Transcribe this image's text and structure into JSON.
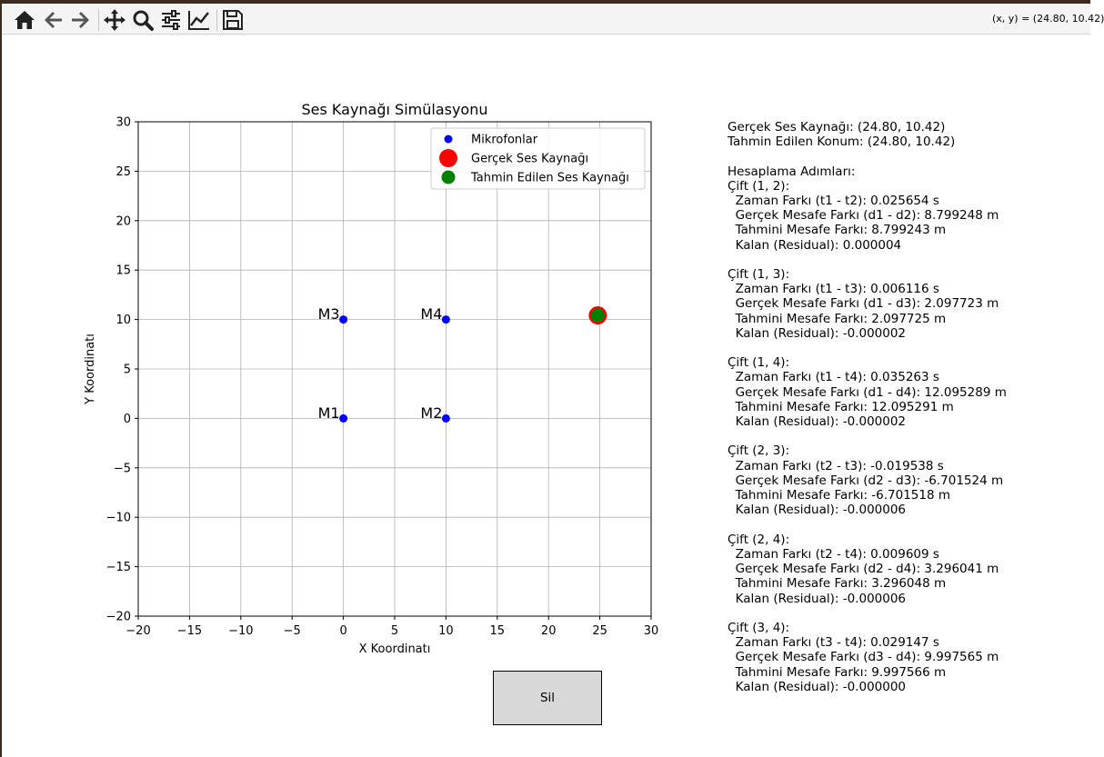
{
  "toolbar": {
    "buttons": [
      {
        "name": "home-icon"
      },
      {
        "name": "back-arrow-icon"
      },
      {
        "name": "forward-arrow-icon"
      },
      {
        "name": "pan-icon"
      },
      {
        "name": "zoom-icon"
      },
      {
        "name": "subplot-config-icon"
      },
      {
        "name": "axis-edit-icon"
      },
      {
        "name": "save-icon"
      }
    ],
    "coords": "(x, y) = (24.80, 10.42)"
  },
  "chart_data": {
    "type": "scatter",
    "title": "Ses Kaynağı Simülasyonu",
    "xlabel": "X Koordinatı",
    "ylabel": "Y Koordinatı",
    "xlim": [
      -20,
      30
    ],
    "ylim": [
      -20,
      30
    ],
    "xticks": [
      -20,
      -15,
      -10,
      -5,
      0,
      5,
      10,
      15,
      20,
      25,
      30
    ],
    "yticks": [
      -20,
      -15,
      -10,
      -5,
      0,
      5,
      10,
      15,
      20,
      25,
      30
    ],
    "grid": true,
    "legend_position": "upper-right",
    "series": [
      {
        "name": "Mikrofonlar",
        "color": "#0000ff",
        "marker": "small-dot",
        "points": [
          [
            0,
            0
          ],
          [
            10,
            0
          ],
          [
            0,
            10
          ],
          [
            10,
            10
          ]
        ]
      },
      {
        "name": "Gerçek Ses Kaynağı",
        "color": "#ff0000",
        "marker": "large-dot",
        "points": [
          [
            24.8,
            10.42
          ]
        ]
      },
      {
        "name": "Tahmin Edilen Ses Kaynağı",
        "color": "#008000",
        "marker": "medium-dot",
        "points": [
          [
            24.8,
            10.42
          ]
        ]
      }
    ],
    "annotations": [
      {
        "text": "M1",
        "x": 0,
        "y": 0
      },
      {
        "text": "M2",
        "x": 10,
        "y": 0
      },
      {
        "text": "M3",
        "x": 0,
        "y": 10
      },
      {
        "text": "M4",
        "x": 10,
        "y": 10
      }
    ]
  },
  "info_text": "Gerçek Ses Kaynağı: (24.80, 10.42)\nTahmin Edilen Konum: (24.80, 10.42)\n\nHesaplama Adımları:\nÇift (1, 2):\n  Zaman Farkı (t1 - t2): 0.025654 s\n  Gerçek Mesafe Farkı (d1 - d2): 8.799248 m\n  Tahmini Mesafe Farkı: 8.799243 m\n  Kalan (Residual): 0.000004\n\nÇift (1, 3):\n  Zaman Farkı (t1 - t3): 0.006116 s\n  Gerçek Mesafe Farkı (d1 - d3): 2.097723 m\n  Tahmini Mesafe Farkı: 2.097725 m\n  Kalan (Residual): -0.000002\n\nÇift (1, 4):\n  Zaman Farkı (t1 - t4): 0.035263 s\n  Gerçek Mesafe Farkı (d1 - d4): 12.095289 m\n  Tahmini Mesafe Farkı: 12.095291 m\n  Kalan (Residual): -0.000002\n\nÇift (2, 3):\n  Zaman Farkı (t2 - t3): -0.019538 s\n  Gerçek Mesafe Farkı (d2 - d3): -6.701524 m\n  Tahmini Mesafe Farkı: -6.701518 m\n  Kalan (Residual): -0.000006\n\nÇift (2, 4):\n  Zaman Farkı (t2 - t4): 0.009609 s\n  Gerçek Mesafe Farkı (d2 - d4): 3.296041 m\n  Tahmini Mesafe Farkı: 3.296048 m\n  Kalan (Residual): -0.000006\n\nÇift (3, 4):\n  Zaman Farkı (t3 - t4): 0.029147 s\n  Gerçek Mesafe Farkı (d3 - d4): 9.997565 m\n  Tahmini Mesafe Farkı: 9.997566 m\n  Kalan (Residual): -0.000000",
  "sil_button": "Sil"
}
